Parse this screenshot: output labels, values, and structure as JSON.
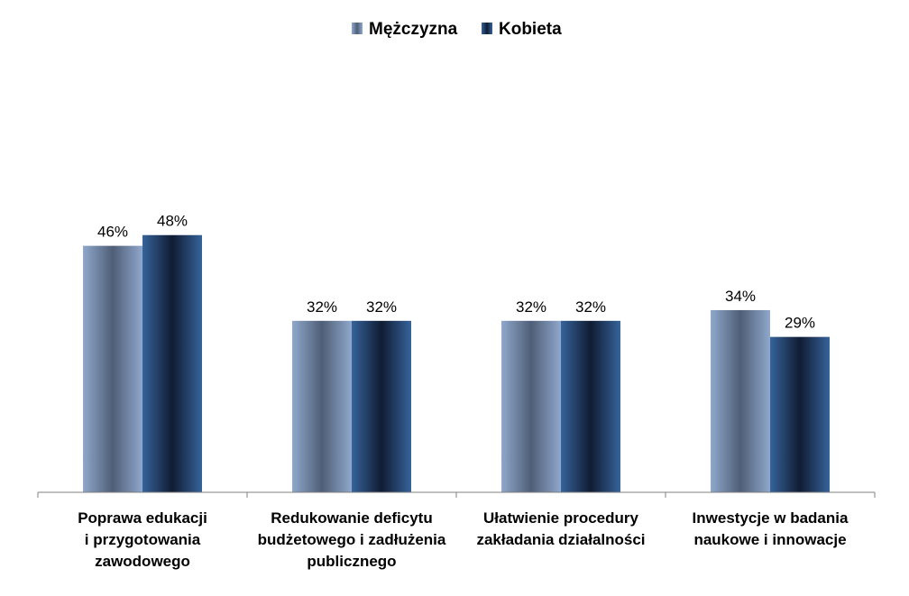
{
  "chart_data": {
    "type": "bar",
    "categories": [
      [
        "Poprawa edukacji",
        "i przygotowania",
        "zawodowego"
      ],
      [
        "Redukowanie deficytu",
        "budżetowego i zadłużenia",
        "publicznego"
      ],
      [
        "Ułatwienie procedury",
        "zakładania działalności"
      ],
      [
        "Inwestycje w badania",
        "naukowe i innowacje"
      ]
    ],
    "series": [
      {
        "name": "Mężczyzna",
        "values": [
          46,
          32,
          32,
          34
        ],
        "labels": [
          "46%",
          "32%",
          "32%",
          "34%"
        ]
      },
      {
        "name": "Kobieta",
        "values": [
          48,
          32,
          32,
          29
        ],
        "labels": [
          "48%",
          "32%",
          "32%",
          "29%"
        ]
      }
    ],
    "ylim": [
      0,
      70
    ],
    "grid": false,
    "legend_position": "top-center"
  },
  "colors": {
    "male_edge": "#8fa8cc",
    "male_center": "#4f5e77",
    "female_edge": "#36639a",
    "female_center": "#101c33",
    "axis": "#808080"
  }
}
